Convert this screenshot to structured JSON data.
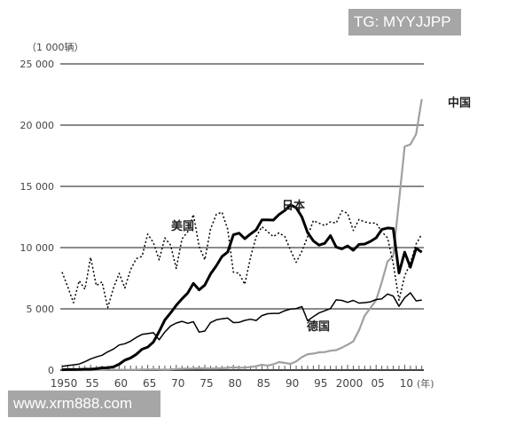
{
  "watermarks": {
    "top_right": "TG: MYYJJPP",
    "bottom_left": "www.xrm888.com"
  },
  "chart_data": {
    "type": "line",
    "y_unit_label": "（1 000辆）",
    "x_unit_label": "(年)",
    "ylim": [
      0,
      25000
    ],
    "xlim": [
      1950,
      2013
    ],
    "y_ticks": [
      0,
      5000,
      10000,
      15000,
      20000,
      25000
    ],
    "y_tick_labels": [
      "0",
      "5 000",
      "10 000",
      "15 000",
      "20 000",
      "25 000"
    ],
    "x_ticks": [
      1950,
      1955,
      1960,
      1965,
      1970,
      1975,
      1980,
      1985,
      1990,
      1995,
      2000,
      2005,
      2010
    ],
    "x_tick_labels": [
      "1950",
      "55",
      "60",
      "65",
      "70",
      "75",
      "80",
      "85",
      "90",
      "95",
      "2000",
      "05",
      "10"
    ],
    "grid": "horizontal",
    "x": [
      1950,
      1951,
      1952,
      1953,
      1954,
      1955,
      1956,
      1957,
      1958,
      1959,
      1960,
      1961,
      1962,
      1963,
      1964,
      1965,
      1966,
      1967,
      1968,
      1969,
      1970,
      1971,
      1972,
      1973,
      1974,
      1975,
      1976,
      1977,
      1978,
      1979,
      1980,
      1981,
      1982,
      1983,
      1984,
      1985,
      1986,
      1987,
      1988,
      1989,
      1990,
      1991,
      1992,
      1993,
      1994,
      1995,
      1996,
      1997,
      1998,
      1999,
      2000,
      2001,
      2002,
      2003,
      2004,
      2005,
      2006,
      2007,
      2008,
      2009,
      2010,
      2011,
      2012,
      2013
    ],
    "series": [
      {
        "name": "中国",
        "style": "gray-solid",
        "color": "#a0a0a0",
        "values": [
          0,
          0,
          0,
          0,
          0,
          0,
          10,
          10,
          20,
          20,
          30,
          20,
          20,
          30,
          40,
          50,
          60,
          40,
          30,
          40,
          90,
          110,
          120,
          130,
          150,
          140,
          130,
          140,
          150,
          180,
          220,
          190,
          200,
          240,
          320,
          440,
          370,
          470,
          650,
          590,
          510,
          710,
          1060,
          1300,
          1350,
          1450,
          1470,
          1580,
          1630,
          1830,
          2070,
          2340,
          3250,
          4440,
          5070,
          5710,
          7190,
          8880,
          9300,
          13790,
          18260,
          18420,
          19270,
          22120
        ]
      },
      {
        "name": "日本",
        "style": "black-thick",
        "color": "#000000",
        "values": [
          30,
          40,
          40,
          50,
          70,
          70,
          110,
          180,
          190,
          260,
          480,
          810,
          990,
          1280,
          1700,
          1880,
          2290,
          3150,
          4090,
          4670,
          5290,
          5810,
          6290,
          7080,
          6550,
          6940,
          7840,
          8510,
          9270,
          9640,
          11040,
          11180,
          10730,
          11110,
          11460,
          12270,
          12260,
          12250,
          12700,
          13030,
          13490,
          13250,
          12500,
          11230,
          10550,
          10200,
          10350,
          10980,
          10050,
          9900,
          10140,
          9780,
          10260,
          10290,
          10510,
          10800,
          11480,
          11600,
          11560,
          7930,
          9630,
          8400,
          9940,
          9630
        ]
      },
      {
        "name": "美国",
        "style": "black-dotted",
        "color": "#000000",
        "values": [
          8000,
          6800,
          5500,
          7300,
          6600,
          9200,
          6900,
          7200,
          5100,
          6700,
          7900,
          6700,
          8200,
          9100,
          9300,
          11100,
          10400,
          9000,
          10800,
          10200,
          8300,
          10700,
          11300,
          12700,
          10100,
          9000,
          11500,
          12700,
          12900,
          11500,
          8000,
          7900,
          7000,
          9200,
          10900,
          11700,
          11300,
          10900,
          11200,
          10900,
          9800,
          8800,
          9700,
          10900,
          12200,
          12000,
          11800,
          12100,
          12000,
          13000,
          12800,
          11400,
          12300,
          12100,
          12000,
          12000,
          11300,
          10800,
          8700,
          5700,
          7700,
          8700,
          10300,
          11100
        ]
      },
      {
        "name": "德国",
        "style": "black-thin",
        "color": "#000000",
        "values": [
          300,
          370,
          430,
          490,
          680,
          910,
          1070,
          1210,
          1490,
          1720,
          2050,
          2150,
          2360,
          2670,
          2910,
          2980,
          3050,
          2480,
          3110,
          3600,
          3840,
          3980,
          3820,
          3950,
          3100,
          3190,
          3870,
          4100,
          4190,
          4250,
          3880,
          3900,
          4060,
          4150,
          4050,
          4450,
          4600,
          4630,
          4630,
          4850,
          4980,
          5020,
          5190,
          4030,
          4360,
          4670,
          4840,
          5020,
          5730,
          5690,
          5530,
          5690,
          5470,
          5510,
          5570,
          5760,
          5820,
          6210,
          6040,
          5210,
          5910,
          6310,
          5650,
          5720
        ]
      }
    ]
  }
}
